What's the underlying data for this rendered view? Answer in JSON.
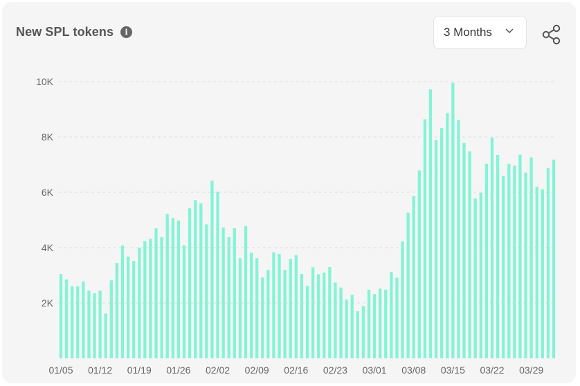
{
  "header": {
    "title": "New SPL tokens",
    "info_icon": "info-icon",
    "share_icon": "share-icon"
  },
  "period_select": {
    "selected": "3 Months"
  },
  "colors": {
    "bar": "#84f3d6",
    "background": "#f5f5f5",
    "grid": "#dddddd",
    "text": "#666666"
  },
  "chart_data": {
    "type": "bar",
    "title": "New SPL tokens",
    "xlabel": "",
    "ylabel": "",
    "ylim": [
      0,
      10000
    ],
    "yticks": [
      2000,
      4000,
      6000,
      8000,
      10000
    ],
    "ytick_labels": [
      "2K",
      "4K",
      "6K",
      "8K",
      "10K"
    ],
    "grid": "horizontal dashed",
    "legend": "none",
    "xtick_labels": [
      {
        "index": 0,
        "label": "01/05"
      },
      {
        "index": 7,
        "label": "01/12"
      },
      {
        "index": 14,
        "label": "01/19"
      },
      {
        "index": 21,
        "label": "01/26"
      },
      {
        "index": 28,
        "label": "02/02"
      },
      {
        "index": 35,
        "label": "02/09"
      },
      {
        "index": 42,
        "label": "02/16"
      },
      {
        "index": 49,
        "label": "02/23"
      },
      {
        "index": 56,
        "label": "03/01"
      },
      {
        "index": 63,
        "label": "03/08"
      },
      {
        "index": 70,
        "label": "03/15"
      },
      {
        "index": 77,
        "label": "03/22"
      },
      {
        "index": 84,
        "label": "03/29"
      }
    ],
    "values": [
      3050,
      2850,
      2600,
      2600,
      2780,
      2450,
      2350,
      2450,
      1620,
      2820,
      3450,
      4080,
      3680,
      3520,
      4000,
      4230,
      4320,
      4700,
      4380,
      5220,
      5070,
      4980,
      4090,
      5420,
      5720,
      5600,
      4840,
      6420,
      6020,
      4730,
      4380,
      4700,
      3620,
      4780,
      3820,
      3620,
      2920,
      3200,
      3830,
      3770,
      3200,
      3600,
      3730,
      3050,
      2620,
      3290,
      3040,
      3100,
      3300,
      2740,
      2560,
      2120,
      2300,
      1700,
      1890,
      2480,
      2320,
      2520,
      2480,
      3120,
      2910,
      4220,
      5260,
      5870,
      6790,
      8640,
      9720,
      7900,
      8320,
      8860,
      9960,
      8620,
      7780,
      7480,
      5780,
      5980,
      7030,
      7980,
      7350,
      6590,
      7030,
      6960,
      7360,
      6710,
      7260,
      6200,
      6110,
      6880,
      7180
    ]
  }
}
